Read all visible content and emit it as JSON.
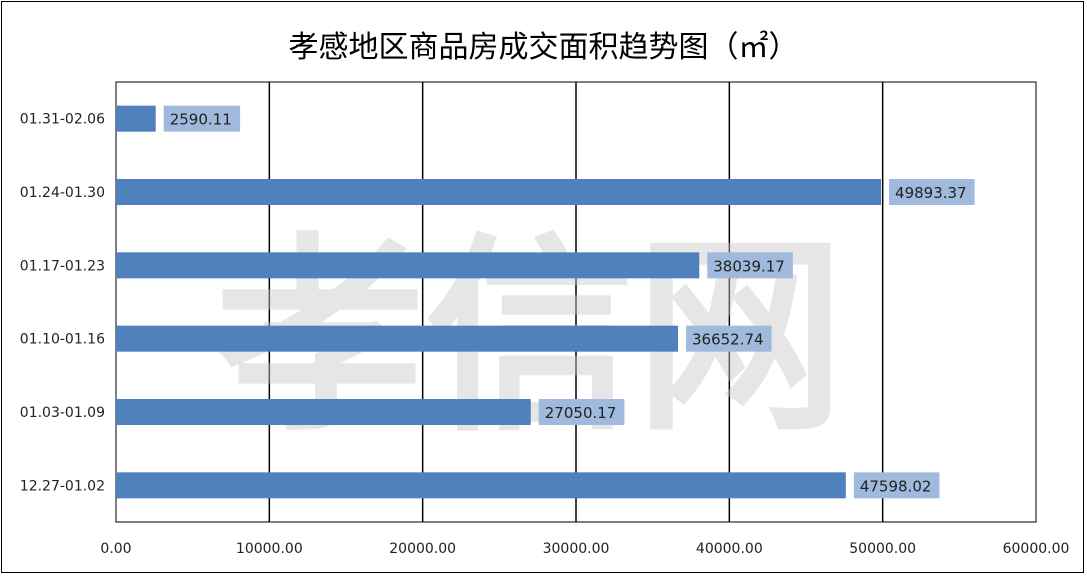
{
  "chart_data": {
    "type": "bar",
    "orientation": "horizontal",
    "title": "孝感地区商品房成交面积趋势图（㎡）",
    "categories": [
      "12.27-01.02",
      "01.03-01.09",
      "01.10-01.16",
      "01.17-01.23",
      "01.24-01.30",
      "01.31-02.06"
    ],
    "values": [
      47598.02,
      27050.17,
      36652.74,
      38039.17,
      49893.37,
      2590.11
    ],
    "value_labels": [
      "47598.02",
      "27050.17",
      "36652.74",
      "38039.17",
      "49893.37",
      "2590.11"
    ],
    "xlim": [
      0,
      60000
    ],
    "x_ticks": [
      0,
      10000,
      20000,
      30000,
      40000,
      50000,
      60000
    ],
    "x_tick_labels": [
      "0.00",
      "10000.00",
      "20000.00",
      "30000.00",
      "40000.00",
      "50000.00",
      "60000.00"
    ],
    "grid": "vertical",
    "legend": "none",
    "bar_color": "#4f81bd",
    "label_bg_color": "#9fbadc",
    "watermark": "孝信网"
  }
}
